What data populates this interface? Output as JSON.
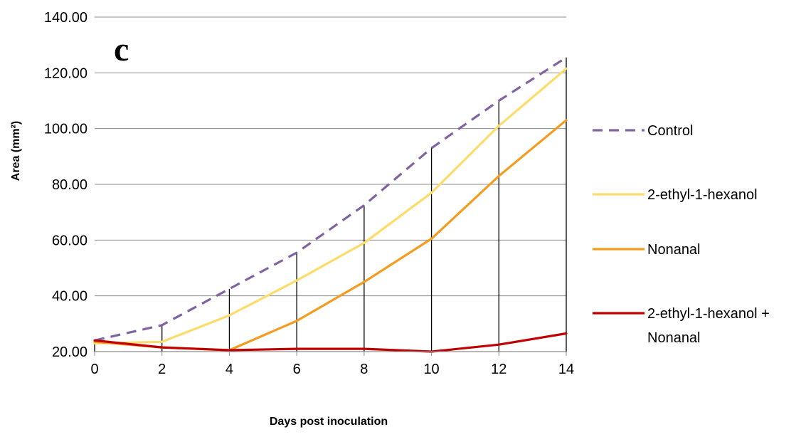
{
  "chart_data": {
    "type": "line",
    "panel_label": "c",
    "xlabel": "Days post inoculation",
    "ylabel": "Area (mm²)",
    "xlim": [
      0,
      14
    ],
    "ylim": [
      20,
      140
    ],
    "x_ticks": [
      "0",
      "2",
      "4",
      "6",
      "8",
      "10",
      "12",
      "14"
    ],
    "y_ticks": [
      "20.00",
      "40.00",
      "60.00",
      "80.00",
      "100.00",
      "120.00",
      "140.00"
    ],
    "grid": "horizontal",
    "legend_position": "right",
    "x": [
      0,
      2,
      4,
      6,
      8,
      10,
      12,
      14
    ],
    "series": [
      {
        "name": "Control",
        "color": "#8064a2",
        "dash": "dashed",
        "values": [
          24.0,
          29.5,
          42.5,
          55.5,
          72.5,
          93.0,
          110.0,
          125.5
        ]
      },
      {
        "name": "2-ethyl-1-hexanol",
        "color": "#fddc6b",
        "dash": "solid",
        "values": [
          23.0,
          23.5,
          33.0,
          45.5,
          59.0,
          77.0,
          101.0,
          121.5
        ]
      },
      {
        "name": "Nonanal",
        "color": "#f39c1f",
        "dash": "solid",
        "values": [
          23.5,
          21.5,
          20.5,
          31.0,
          45.0,
          60.5,
          83.0,
          103.0
        ]
      },
      {
        "name": "2-ethyl-1-hexanol + Nonanal",
        "legend_lines": [
          "2-ethyl-1-hexanol +",
          "Nonanal"
        ],
        "color": "#c00000",
        "dash": "solid",
        "values": [
          24.0,
          21.5,
          20.5,
          21.0,
          21.0,
          20.0,
          22.5,
          26.5
        ]
      }
    ],
    "error_bars_upper": [
      24.0,
      29.5,
      42.5,
      55.5,
      72.5,
      93.0,
      110.0,
      125.5
    ]
  }
}
